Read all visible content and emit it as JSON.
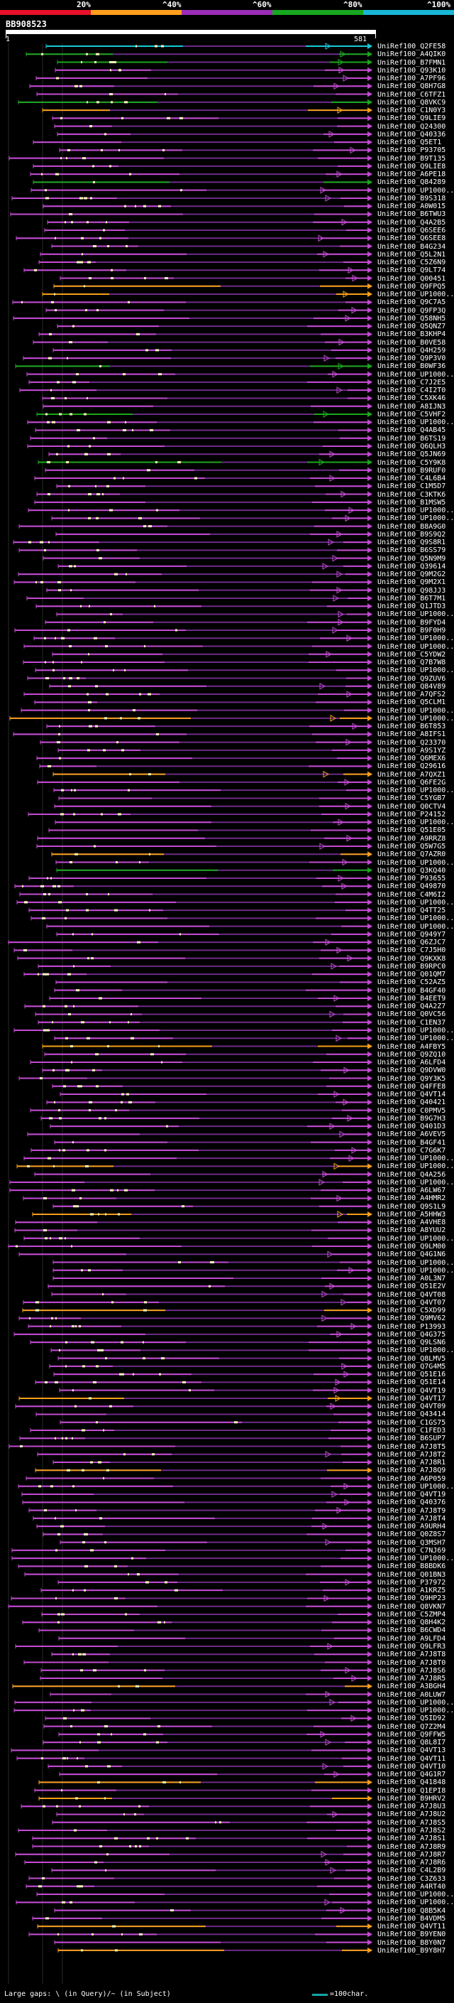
{
  "legend": {
    "labels": [
      "20%",
      "^40%",
      "^60%",
      "^80%",
      "^100%"
    ],
    "colors": [
      "#e8102a",
      "#ff9f1c",
      "#9b2db8",
      "#17a81f",
      "#18b6d6"
    ]
  },
  "query": {
    "name": "BB908523",
    "start": "1",
    "end": "581"
  },
  "hit_colors": {
    "cyan": "#18c8d6",
    "green": "#1aa81a",
    "orange": "#f5a019",
    "magenta": "#c34ad2",
    "purple": "#6a2c87",
    "highlight": "#fff8c0"
  },
  "hits": [
    "UniRef100_Q2FE58",
    "UniRef100_A4QIK0",
    "UniRef100_B7FMN1",
    "UniRef100_Q93K10",
    "UniRef100_A7PF96",
    "UniRef100_Q8H7G8",
    "UniRef100_C6TFZ1",
    "UniRef100_Q8VKC9",
    "UniRef100_C1N0Y3",
    "UniRef100_Q9LIE9",
    "UniRef100_Q24300",
    "UniRef100_Q40336",
    "UniRef100_Q5ET1",
    "UniRef100_P93705",
    "UniRef100_B9T135",
    "UniRef100_Q9LIE8",
    "UniRef100_A6PE18",
    "UniRef100_Q84289",
    "UniRef100_UP1000...",
    "UniRef100_B9S318",
    "UniRef100_A0W015",
    "UniRef100_B6TWU3",
    "UniRef100_Q4A2B5",
    "UniRef100_Q6SEE6",
    "UniRef100_Q6SEE8",
    "UniRef100_B4G234",
    "UniRef100_Q5L2N1",
    "UniRef100_C5Z6N9",
    "UniRef100_Q9LT74",
    "UniRef100_Q00451",
    "UniRef100_Q9FPQ5",
    "UniRef100_UP1000...",
    "UniRef100_Q9C7A5",
    "UniRef100_Q9FP3Q",
    "UniRef100_Q58NH5",
    "UniRef100_Q5QNZ7",
    "UniRef100_B3KHP4",
    "UniRef100_B0VE58",
    "UniRef100_Q4H259",
    "UniRef100_Q9P3V0",
    "UniRef100_B0WF36",
    "UniRef100_UP1000...",
    "UniRef100_C7J2E5",
    "UniRef100_C4I2T0",
    "UniRef100_C5XK46",
    "UniRef100_A8IJN3",
    "UniRef100_C5VHF2",
    "UniRef100_UP1000...",
    "UniRef100_Q4AB45",
    "UniRef100_B6TS19",
    "UniRef100_Q6QLH3",
    "UniRef100_Q5JN69",
    "UniRef100_C5Y9K8",
    "UniRef100_B9RUF0",
    "UniRef100_C4L6B4",
    "UniRef100_C1M5D7",
    "UniRef100_C3KTK6",
    "UniRef100_B1MSW5",
    "UniRef100_UP1000...",
    "UniRef100_UP1000...",
    "UniRef100_B8A9G0",
    "UniRef100_B9S9Q2",
    "UniRef100_Q9S8R1",
    "UniRef100_B6SS79",
    "UniRef100_Q5N9M9",
    "UniRef100_Q39614",
    "UniRef100_Q9M2G2",
    "UniRef100_Q9M2X1",
    "UniRef100_Q98JJ3",
    "UniRef100_B6T7M1",
    "UniRef100_Q1JTD3",
    "UniRef100_UP1000...",
    "UniRef100_B9FYD4",
    "UniRef100_B9F0H9",
    "UniRef100_UP1000...",
    "UniRef100_UP1000...",
    "UniRef100_C5YDW2",
    "UniRef100_Q7B7W8",
    "UniRef100_UP1000...",
    "UniRef100_Q9ZUV6",
    "UniRef100_Q84V89",
    "UniRef100_A7QFS2",
    "UniRef100_Q5CLM1",
    "UniRef100_UP1000...",
    "UniRef100_UP1000...",
    "UniRef100_B6T853",
    "UniRef100_A8IFS1",
    "UniRef100_Q23370",
    "UniRef100_A9S1YZ",
    "UniRef100_Q6MEX6",
    "UniRef100_Q29616",
    "UniRef100_A7QXZ1",
    "UniRef100_Q6FE2G",
    "UniRef100_UP1000...",
    "UniRef100_C5YGB7",
    "UniRef100_Q0CTV4",
    "UniRef100_P24152",
    "UniRef100_UP1000...",
    "UniRef100_Q51E05",
    "UniRef100_A9RRZ8",
    "UniRef100_Q5W7G5",
    "UniRef100_Q7AZR0",
    "UniRef100_UP1000...",
    "UniRef100_Q3KQ40",
    "UniRef100_P93655",
    "UniRef100_Q49870",
    "UniRef100_C4M6I2",
    "UniRef100_UP1000...",
    "UniRef100_Q4TT25",
    "UniRef100_UP1000...",
    "UniRef100_UP1000...",
    "UniRef100_Q949Y7",
    "UniRef100_Q6ZJC7",
    "UniRef100_C7J5H0",
    "UniRef100_Q9KXK8",
    "UniRef100_B9RPC0",
    "UniRef100_Q01QM7",
    "UniRef100_C52AZ5",
    "UniRef100_B4GF40",
    "UniRef100_B4EET9",
    "UniRef100_Q4A2Z7",
    "UniRef100_Q0VC56",
    "UniRef100_C1EN37",
    "UniRef100_UP1000...",
    "UniRef100_UP1000...",
    "UniRef100_A4FBY5",
    "UniRef100_Q9ZQ10",
    "UniRef100_A6LFD4",
    "UniRef100_Q9DVW0",
    "UniRef100_Q9Y3K5",
    "UniRef100_Q4FFE8",
    "UniRef100_Q4VT14",
    "UniRef100_Q40421",
    "UniRef100_C0PMV5",
    "UniRef100_B9G7H3",
    "UniRef100_Q401D3",
    "UniRef100_A6VEV5",
    "UniRef100_B4GF41",
    "UniRef100_C7G6K7",
    "UniRef100_UP1000...",
    "UniRef100_UP1000...",
    "UniRef100_Q4A256",
    "UniRef100_UP1000...",
    "UniRef100_A6LW67",
    "UniRef100_A4HMR2",
    "UniRef100_Q9S1L9",
    "UniRef100_A5HHW3",
    "UniRef100_A4VHE8",
    "UniRef100_A8YUU2",
    "UniRef100_UP1000...",
    "UniRef100_Q9LM00",
    "UniRef100_Q4G1N6",
    "UniRef100_UP1000...",
    "UniRef100_UP1000...",
    "UniRef100_A0L3N7",
    "UniRef100_Q51E2V",
    "UniRef100_Q4VT08",
    "UniRef100_Q4VT07",
    "UniRef100_C5XD99",
    "UniRef100_Q9MV62",
    "UniRef100_P13993",
    "UniRef100_Q4G375",
    "UniRef100_Q9LSN6",
    "UniRef100_UP1000...",
    "UniRef100_Q8LMV5",
    "UniRef100_Q7G4M5",
    "UniRef100_Q51E16",
    "UniRef100_Q51E14",
    "UniRef100_Q4VT19",
    "UniRef100_Q4VT17",
    "UniRef100_Q4VT09",
    "UniRef100_Q43414",
    "UniRef100_C1GS75",
    "UniRef100_C1FED3",
    "UniRef100_B6SUP7",
    "UniRef100_A7J8T5",
    "UniRef100_A7J8T2",
    "UniRef100_A7J8R1",
    "UniRef100_A7J8Q9",
    "UniRef100_A6P059",
    "UniRef100_UP1000...",
    "UniRef100_Q4VT19",
    "UniRef100_Q40376",
    "UniRef100_A7J8T9",
    "UniRef100_A7J8T4",
    "UniRef100_A9URH4",
    "UniRef100_Q0Z8S7",
    "UniRef100_Q3MSH7",
    "UniRef100_C7NJ69",
    "UniRef100_UP1000...",
    "UniRef100_B8BDK6",
    "UniRef100_Q01BN3",
    "UniRef100_P37972",
    "UniRef100_A1KRZ5",
    "UniRef100_Q9HP23",
    "UniRef100_Q8VKN7",
    "UniRef100_C5ZMP4",
    "UniRef100_Q8H4K2",
    "UniRef100_B6CWD4",
    "UniRef100_A9LFD4",
    "UniRef100_Q9LFR3",
    "UniRef100_A7J8T8",
    "UniRef100_A7J8T0",
    "UniRef100_A7J8S6",
    "UniRef100_A7J8R5",
    "UniRef100_A3BGH4",
    "UniRef100_A0LUW7",
    "UniRef100_UP1000...",
    "UniRef100_UP1000...",
    "UniRef100_Q5ID92",
    "UniRef100_Q7Z2M4",
    "UniRef100_Q9FFW5",
    "UniRef100_Q8L8I7",
    "UniRef100_Q4VT13",
    "UniRef100_Q4VT11",
    "UniRef100_Q4VT10",
    "UniRef100_Q4G1R7",
    "UniRef100_Q41848",
    "UniRef100_Q1EPI8",
    "UniRef100_B9HRV2",
    "UniRef100_A7J8U3",
    "UniRef100_A7J8U2",
    "UniRef100_A7J8S5",
    "UniRef100_A7J8S2",
    "UniRef100_A7J8S1",
    "UniRef100_A7J8R9",
    "UniRef100_A7J8R7",
    "UniRef100_A7J8R6",
    "UniRef100_C4L2B9",
    "UniRef100_C3Z633",
    "UniRef100_A4RT40",
    "UniRef100_UP1000...",
    "UniRef100_UP1000...",
    "UniRef100_Q8B5K4",
    "UniRef100_B4VDM5",
    "UniRef100_Q4VT11",
    "UniRef100_B9YEN0",
    "UniRef100_B8Y0N7",
    "UniRef100_B9Y8H7"
  ],
  "footer": {
    "gap_label": "Large gaps: \\ (in Query)/~ (in Subject)",
    "scale_label": "=100char."
  }
}
